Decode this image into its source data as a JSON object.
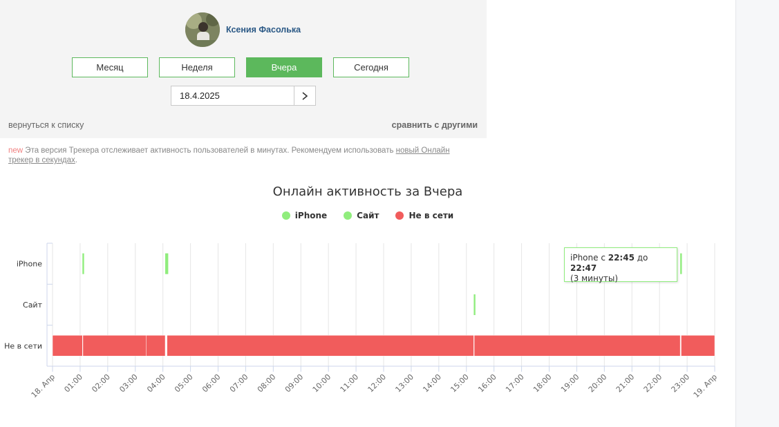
{
  "profile": {
    "name": "Ксения Фасолька"
  },
  "periods": [
    {
      "label": "Месяц",
      "active": false
    },
    {
      "label": "Неделя",
      "active": false
    },
    {
      "label": "Вчера",
      "active": true
    },
    {
      "label": "Сегодня",
      "active": false
    }
  ],
  "date": {
    "value": "18.4.2025"
  },
  "links": {
    "back": "вернуться к списку",
    "compare": "сравнить с другими"
  },
  "notice": {
    "badge": "new",
    "text": " Эта версия Трекера отслеживает активность пользователей в минутах. Рекомендуем использовать ",
    "link": "новый Онлайн трекер в секундах",
    "end": "."
  },
  "tooltip": {
    "prefix": "iPhone с ",
    "from": "22:45",
    "middle": " до ",
    "to": "22:47",
    "duration": "(3 минуты)"
  },
  "colors": {
    "online": "#90ed7d",
    "offline": "#f15c5c",
    "active_button": "#5cb85c",
    "name": "#2a5885"
  },
  "chart_data": {
    "type": "timeline",
    "title": "Онлайн активность за Вчера",
    "categories": [
      "iPhone",
      "Сайт",
      "Не в сети"
    ],
    "legend": [
      {
        "name": "iPhone",
        "color": "#90ed7d"
      },
      {
        "name": "Сайт",
        "color": "#90ed7d"
      },
      {
        "name": "Не в сети",
        "color": "#f15c5c"
      }
    ],
    "legend_position": "top-center",
    "x_ticks": [
      "18. Апр",
      "01:00",
      "02:00",
      "03:00",
      "04:00",
      "05:00",
      "06:00",
      "07:00",
      "08:00",
      "09:00",
      "10:00",
      "11:00",
      "12:00",
      "13:00",
      "14:00",
      "15:00",
      "16:00",
      "17:00",
      "18:00",
      "19:00",
      "20:00",
      "21:00",
      "22:00",
      "23:00",
      "19. Апр"
    ],
    "x_range_hours": [
      0,
      24
    ],
    "grid": true,
    "series": [
      {
        "name": "iPhone",
        "sessions": [
          [
            "01:05",
            "01:06"
          ],
          [
            "04:05",
            "04:06"
          ],
          [
            "04:08",
            "04:09"
          ],
          [
            "22:45",
            "22:47"
          ]
        ]
      },
      {
        "name": "Сайт",
        "sessions": [
          [
            "15:16",
            "15:17"
          ]
        ]
      },
      {
        "name": "Не в сети",
        "sessions": [
          [
            "00:00",
            "01:05"
          ],
          [
            "01:06",
            "03:24"
          ],
          [
            "03:24",
            "04:05"
          ],
          [
            "04:09",
            "15:16"
          ],
          [
            "15:17",
            "22:45"
          ],
          [
            "22:47",
            "24:00"
          ]
        ]
      }
    ]
  }
}
